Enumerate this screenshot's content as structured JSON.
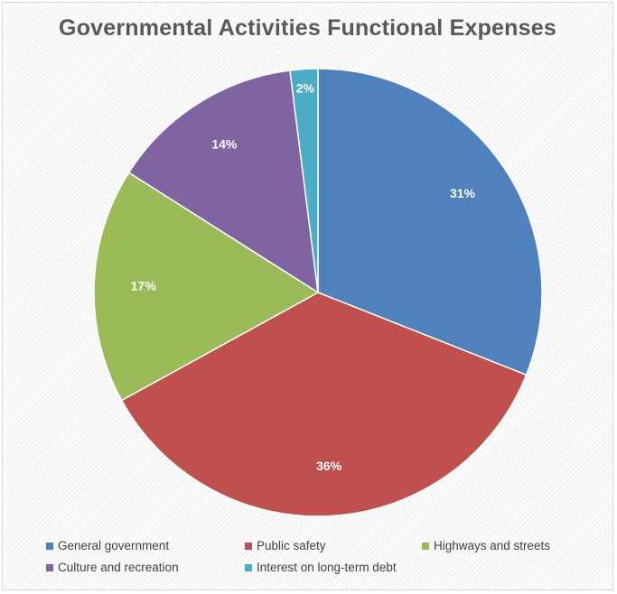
{
  "chart_data": {
    "type": "pie",
    "title": "Governmental Activities Functional Expenses",
    "categories": [
      "General government",
      "Public safety",
      "Highways and streets",
      "Culture and recreation",
      "Interest on long-term debt"
    ],
    "values": [
      31,
      36,
      17,
      14,
      2
    ],
    "labels": [
      "31%",
      "36%",
      "17%",
      "14%",
      "2%"
    ],
    "colors": [
      "#4f81bd",
      "#c0504d",
      "#9bbb59",
      "#8064a2",
      "#4bacc6"
    ],
    "legend_position": "bottom"
  }
}
